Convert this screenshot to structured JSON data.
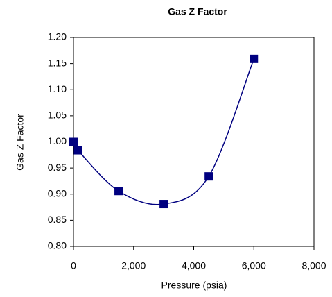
{
  "chart_data": {
    "type": "scatter",
    "title": "Gas Z Factor",
    "x_label": "Pressure (psia)",
    "y_label": "Gas Z Factor",
    "series": [
      {
        "x": [
          0,
          150,
          1500,
          3000,
          4500,
          6000
        ],
        "values": [
          1.0,
          0.984,
          0.906,
          0.881,
          0.934,
          1.159
        ],
        "color": "#000080",
        "smooth": true
      }
    ],
    "xlim": [
      0,
      8000
    ],
    "xticks": [
      0,
      {
        "value": 2000,
        "label": "2,000"
      },
      {
        "value": 4000,
        "label": "4,000"
      },
      {
        "value": 6000,
        "label": "6,000"
      },
      {
        "value": 8000,
        "label": "8,000"
      }
    ],
    "ylim": [
      0.8,
      1.2
    ],
    "yticks": [
      {
        "value": 0.8,
        "label": "0.80"
      },
      0.85,
      {
        "value": 0.9,
        "label": "0.90"
      },
      0.95,
      {
        "value": 1.0,
        "label": "1.00"
      },
      1.05,
      {
        "value": 1.1,
        "label": "1.10"
      },
      1.15,
      {
        "value": 1.2,
        "label": "1.20"
      }
    ]
  }
}
